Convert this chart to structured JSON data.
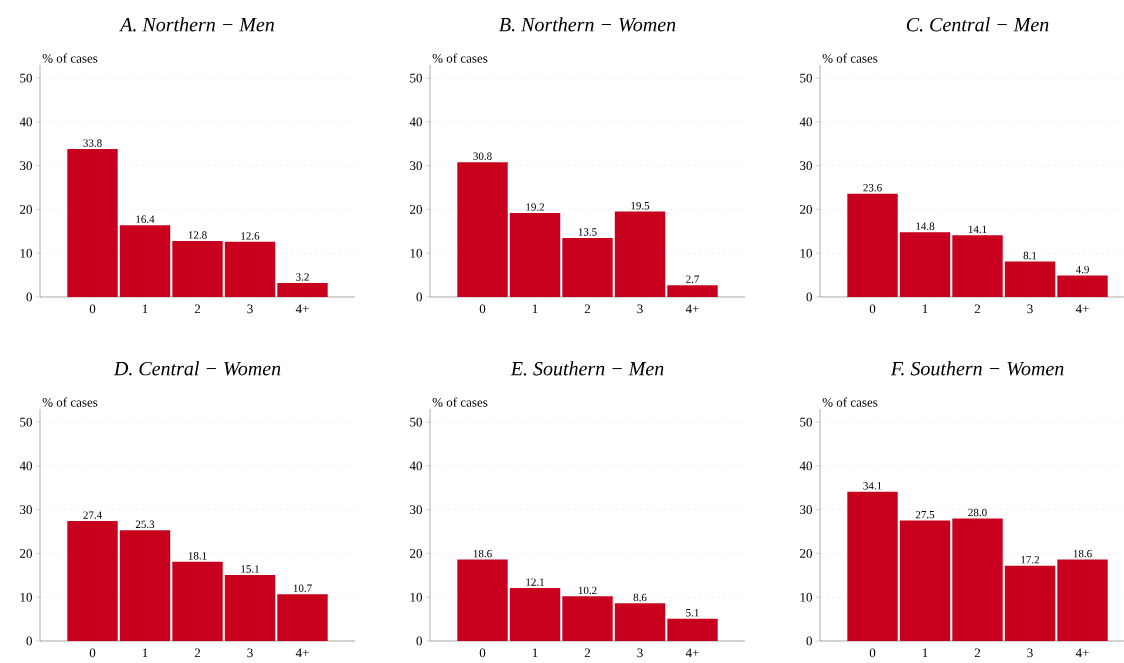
{
  "chart_data": [
    {
      "type": "bar",
      "title": "A. Northern − Men",
      "ylabel": "% of cases",
      "categories": [
        "0",
        "1",
        "2",
        "3",
        "4+"
      ],
      "values": [
        33.8,
        16.4,
        12.8,
        12.6,
        3.2
      ],
      "color": "#c8001e",
      "ylim": [
        0,
        53
      ],
      "yticks": [
        0,
        10,
        20,
        30,
        40,
        50
      ],
      "grid": "y",
      "data_labels": true
    },
    {
      "type": "bar",
      "title": "B. Northern − Women",
      "ylabel": "% of cases",
      "categories": [
        "0",
        "1",
        "2",
        "3",
        "4+"
      ],
      "values": [
        30.8,
        19.2,
        13.5,
        19.5,
        2.7
      ],
      "color": "#c8001e",
      "ylim": [
        0,
        53
      ],
      "yticks": [
        0,
        10,
        20,
        30,
        40,
        50
      ],
      "grid": "y",
      "data_labels": true
    },
    {
      "type": "bar",
      "title": "C. Central − Men",
      "ylabel": "% of cases",
      "categories": [
        "0",
        "1",
        "2",
        "3",
        "4+"
      ],
      "values": [
        23.6,
        14.8,
        14.1,
        8.1,
        4.9
      ],
      "color": "#c8001e",
      "ylim": [
        0,
        53
      ],
      "yticks": [
        0,
        10,
        20,
        30,
        40,
        50
      ],
      "grid": "y",
      "data_labels": true
    },
    {
      "type": "bar",
      "title": "D. Central − Women",
      "ylabel": "% of cases",
      "categories": [
        "0",
        "1",
        "2",
        "3",
        "4+"
      ],
      "values": [
        27.4,
        25.3,
        18.1,
        15.1,
        10.7
      ],
      "color": "#c8001e",
      "ylim": [
        0,
        53
      ],
      "yticks": [
        0,
        10,
        20,
        30,
        40,
        50
      ],
      "grid": "y",
      "data_labels": true
    },
    {
      "type": "bar",
      "title": "E. Southern − Men",
      "ylabel": "% of cases",
      "categories": [
        "0",
        "1",
        "2",
        "3",
        "4+"
      ],
      "values": [
        18.6,
        12.1,
        10.2,
        8.6,
        5.1
      ],
      "color": "#c8001e",
      "ylim": [
        0,
        53
      ],
      "yticks": [
        0,
        10,
        20,
        30,
        40,
        50
      ],
      "grid": "y",
      "data_labels": true
    },
    {
      "type": "bar",
      "title": "F. Southern − Women",
      "ylabel": "% of cases",
      "categories": [
        "0",
        "1",
        "2",
        "3",
        "4+"
      ],
      "values": [
        34.1,
        27.5,
        28.0,
        17.2,
        18.6
      ],
      "value_labels": [
        "34.1",
        "27.5",
        "28.0",
        "17.2",
        "18.6"
      ],
      "color": "#c8001e",
      "ylim": [
        0,
        53
      ],
      "yticks": [
        0,
        10,
        20,
        30,
        40,
        50
      ],
      "grid": "y"
    }
  ]
}
